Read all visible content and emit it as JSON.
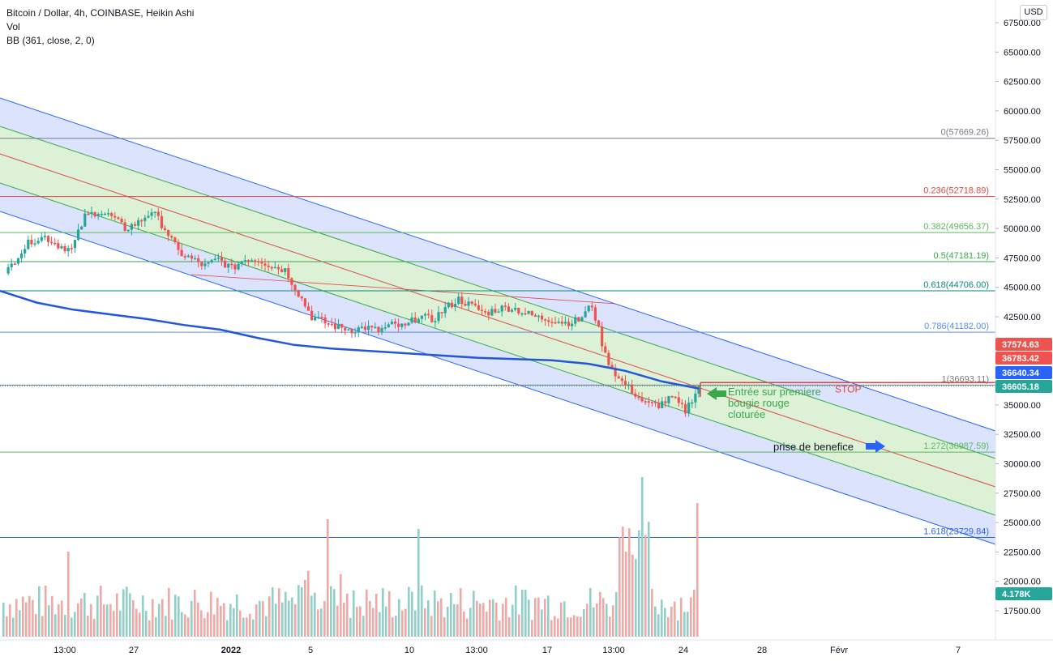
{
  "legend": {
    "title": "Bitcoin / Dollar, 4h, COINBASE, Heikin Ashi",
    "vol": "Vol",
    "bb": "BB (361, close, 2, 0)"
  },
  "currency_button": "USD",
  "colors": {
    "up": "#26a69a",
    "down": "#ef5350",
    "vol_up": "#8fd1c8",
    "vol_down": "#f6a6a3",
    "channel_fill": "#d0d9fb",
    "inner_fill": "#dcf1d6",
    "channel_line": "#2962ff",
    "mid_line": "#e04545",
    "inner_line": "#3aa84a",
    "bb_line": "#2456d8"
  },
  "chart_data": {
    "type": "candlestick",
    "price_axis": {
      "ylim": [
        15000,
        68500
      ],
      "ticks": [
        "67500.00",
        "65000.00",
        "62500.00",
        "60000.00",
        "57500.00",
        "55000.00",
        "52500.00",
        "50000.00",
        "47500.00",
        "45000.00",
        "42500.00",
        "40000.00",
        "37500.00",
        "35000.00",
        "32500.00",
        "30000.00",
        "27500.00",
        "25000.00",
        "22500.00",
        "20000.00",
        "17500.00"
      ]
    },
    "x_axis": {
      "ticks": [
        "13:00",
        "27",
        "2022",
        "5",
        "10",
        "13:00",
        "17",
        "13:00",
        "24",
        "28",
        "Févr",
        "7"
      ]
    },
    "fib_levels": [
      {
        "label": "0(57669.26)",
        "value": 57669.26,
        "color": "#787b86"
      },
      {
        "label": "0.236(52718.89)",
        "value": 52718.89,
        "color": "#e04545"
      },
      {
        "label": "0.382(49656.37)",
        "value": 49656.37,
        "color": "#5cb85c"
      },
      {
        "label": "0.5(47181.19)",
        "value": 47181.19,
        "color": "#3aa84a"
      },
      {
        "label": "0.618(44706.00)",
        "value": 44706.0,
        "color": "#0a8a7a"
      },
      {
        "label": "0.786(41182.00)",
        "value": 41182.0,
        "color": "#5b8def"
      },
      {
        "label": "1(36693.11)",
        "value": 36693.11,
        "color": "#787b86"
      },
      {
        "label": "1.272(30987.59)",
        "value": 30987.59,
        "color": "#5cb85c"
      },
      {
        "label": "1.618(23729.84)",
        "value": 23729.84,
        "color": "#2962ff"
      }
    ],
    "price_tags": [
      {
        "label": "37574.63",
        "value": 37574.63,
        "color": "#ef5350"
      },
      {
        "label": "36783.42",
        "value": 36783.42,
        "color": "#ef5350"
      },
      {
        "label": "36640.34",
        "value": 36640.34,
        "color": "#2962ff"
      },
      {
        "label": "36605.18",
        "value": 36605.18,
        "color": "#26a69a"
      },
      {
        "label": "4.178K",
        "value": null,
        "color": "#26a69a"
      }
    ],
    "stop_level": 36900,
    "annotations": {
      "stop": "STOP",
      "entry_line1": "Entrée sur premiere",
      "entry_line2": "bougie rouge",
      "entry_line3": "cloturée",
      "profit": "prise de benefice"
    },
    "closes": [
      46000,
      47800,
      49000,
      49300,
      48600,
      48200,
      51000,
      51500,
      51000,
      50000,
      50500,
      51500,
      50000,
      48000,
      47400,
      46800,
      47400,
      46600,
      47400,
      47400,
      46800,
      46500,
      44500,
      42500,
      42000,
      41600,
      41400,
      41600,
      41300,
      41800,
      41600,
      42600,
      42200,
      43200,
      44000,
      43400,
      42800,
      43200,
      43300,
      42800,
      42400,
      42300,
      42000,
      42200,
      43500,
      39200,
      37200,
      36200,
      35100,
      35000,
      35600,
      34500,
      36600
    ],
    "bb_basis": [
      44700,
      43700,
      43100,
      42700,
      42300,
      41800,
      41400,
      40700,
      40100,
      39800,
      39600,
      39400,
      39200,
      39000,
      38900,
      38800,
      38500,
      37900,
      37000,
      36400
    ]
  }
}
